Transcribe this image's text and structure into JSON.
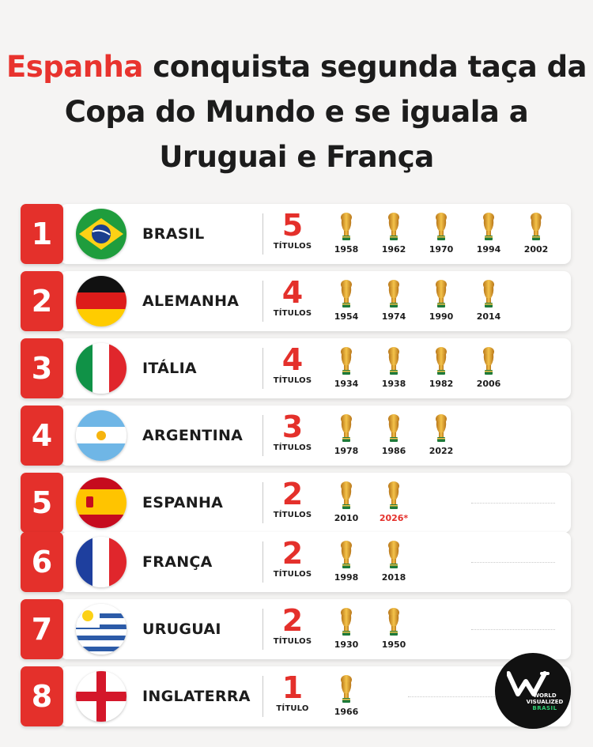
{
  "headline": {
    "highlight": "Espanha",
    "rest": " conquista segunda taça da Copa do Mundo e se iguala a Uruguai e França"
  },
  "colors": {
    "accent": "#e4302b",
    "gold": "#e0a020",
    "background": "#f5f4f3"
  },
  "rows": [
    {
      "rank": "1",
      "country": "BRASIL",
      "flag": "brazil-flag-icon",
      "count": "5",
      "label": "TÍTULOS",
      "years": [
        "1958",
        "1962",
        "1970",
        "1994",
        "2002"
      ]
    },
    {
      "rank": "2",
      "country": "ALEMANHA",
      "flag": "germany-flag-icon",
      "count": "4",
      "label": "TÍTULOS",
      "years": [
        "1954",
        "1974",
        "1990",
        "2014"
      ]
    },
    {
      "rank": "3",
      "country": "ITÁLIA",
      "flag": "italy-flag-icon",
      "count": "4",
      "label": "TÍTULOS",
      "years": [
        "1934",
        "1938",
        "1982",
        "2006"
      ]
    },
    {
      "rank": "4",
      "country": "ARGENTINA",
      "flag": "argentina-flag-icon",
      "count": "3",
      "label": "TÍTULOS",
      "years": [
        "1978",
        "1986",
        "2022"
      ]
    },
    {
      "rank": "5",
      "country": "ESPANHA",
      "flag": "spain-flag-icon",
      "count": "2",
      "label": "TÍTULOS",
      "years": [
        "2010",
        "2026*"
      ]
    },
    {
      "rank": "6",
      "country": "FRANÇA",
      "flag": "france-flag-icon",
      "count": "2",
      "label": "TÍTULOS",
      "years": [
        "1998",
        "2018"
      ]
    },
    {
      "rank": "7",
      "country": "URUGUAI",
      "flag": "uruguay-flag-icon",
      "count": "2",
      "label": "TÍTULOS",
      "years": [
        "1930",
        "1950"
      ]
    },
    {
      "rank": "8",
      "country": "INGLATERRA",
      "flag": "england-flag-icon",
      "count": "1",
      "label": "TÍTULO",
      "years": [
        "1966"
      ]
    }
  ],
  "logo": {
    "line1": "WORLD",
    "line2": "VISUALIZED",
    "line3": "BRASIL"
  }
}
